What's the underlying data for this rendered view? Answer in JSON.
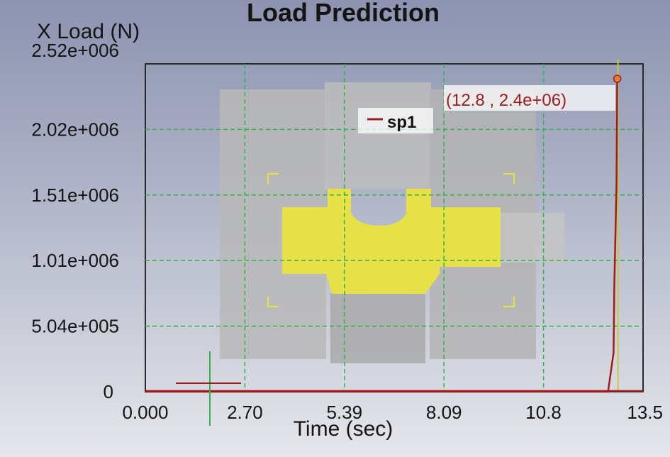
{
  "colors": {
    "series": "#a01c1c",
    "grid": "#33b24a",
    "cursor_line": "#c8c840",
    "part_gray": "#b4b4b4",
    "part_yellow": "#e6e146"
  },
  "chart_data": {
    "type": "line",
    "title": "Load Prediction",
    "ylabel": "X Load (N)",
    "xlabel": "Time (sec)",
    "xlim": [
      0,
      13.5
    ],
    "ylim": [
      0,
      2520000
    ],
    "x_ticks": [
      "0.000",
      "2.70",
      "5.39",
      "8.09",
      "10.8",
      "13.5"
    ],
    "y_ticks": [
      "0",
      "5.04e+005",
      "1.01e+006",
      "1.51e+006",
      "2.02e+006",
      "2.52e+006"
    ],
    "grid": true,
    "legend_position": "top-center",
    "series": [
      {
        "name": "sp1",
        "x": [
          0,
          12.55,
          12.7,
          12.72,
          12.78,
          12.8
        ],
        "y": [
          0,
          0,
          300000,
          800000,
          1600000,
          2400000
        ]
      }
    ],
    "cursor": {
      "label": "(12.8 , 2.4e+06)",
      "x": 12.8,
      "y": 2400000
    }
  }
}
